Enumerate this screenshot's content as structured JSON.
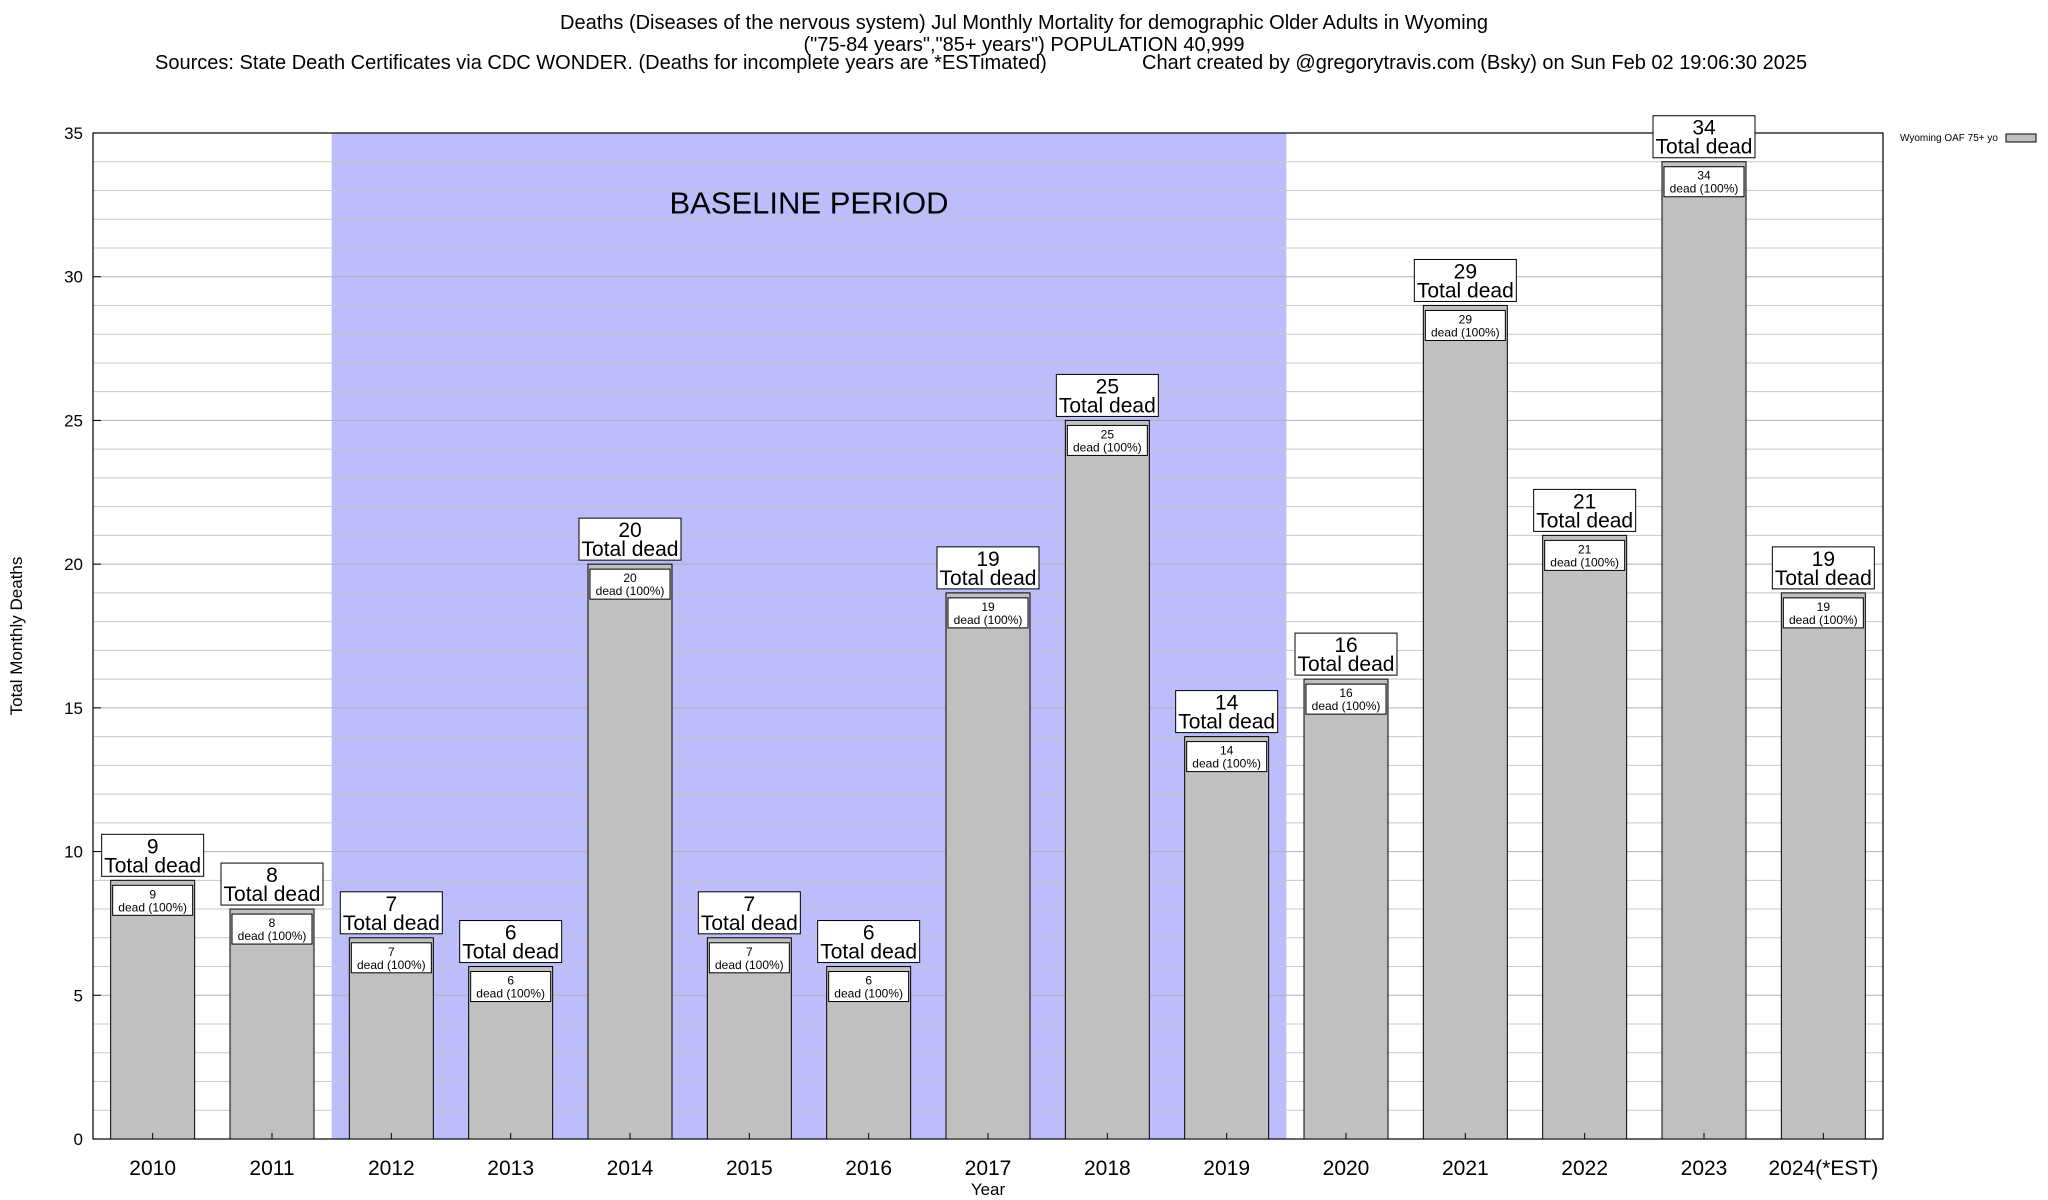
{
  "title_lines": [
    "Deaths (Diseases of the nervous system) Jul Monthly Mortality for demographic Older Adults in Wyoming",
    "(\"75-84 years\",\"85+ years\") POPULATION 40,999"
  ],
  "sources": "Sources: State Death Certificates via CDC WONDER. (Deaths for incomplete years are *ESTimated)",
  "credit": "Chart created by @gregorytravis.com (Bsky) on Sun Feb 02 19:06:30 2025",
  "colors": {
    "bar": "#c0c0c0",
    "baseline_shade": "#bdbdfc",
    "grid": "#c8c8c8"
  },
  "chart_data": {
    "type": "bar",
    "categories": [
      "2010",
      "2011",
      "2012",
      "2013",
      "2014",
      "2015",
      "2016",
      "2017",
      "2018",
      "2019",
      "2020",
      "2021",
      "2022",
      "2023",
      "2024(*EST)"
    ],
    "series": [
      {
        "name": "Wyoming OAF 75+ yo",
        "values": [
          9,
          8,
          7,
          6,
          20,
          7,
          6,
          19,
          25,
          14,
          16,
          29,
          21,
          34,
          19
        ]
      }
    ],
    "xlabel": "Year",
    "ylabel": "Total Monthly Deaths",
    "ylim": [
      0,
      35
    ],
    "yticks": [
      0,
      5,
      10,
      15,
      20,
      25,
      30,
      35
    ],
    "grid": true,
    "legend_position": "top-right",
    "baseline_period": {
      "label": "BASELINE PERIOD",
      "from": "2012",
      "to": "2019"
    },
    "top_label_suffix": "Total dead",
    "inner_label_suffix": "dead (100%)"
  }
}
